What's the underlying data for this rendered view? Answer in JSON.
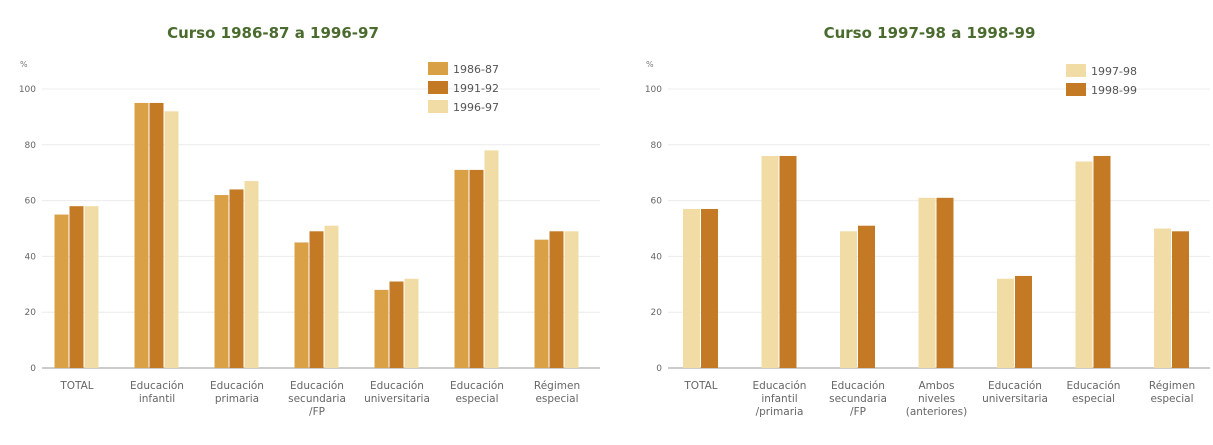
{
  "colors": {
    "dark": "#c47a24",
    "medium": "#d9a046",
    "light": "#f0dca4",
    "title": "#4a6b2e"
  },
  "chart_data": [
    {
      "type": "bar",
      "title": "Curso 1986-87 a 1996-97",
      "ylabel": "%",
      "ylim": [
        0,
        100
      ],
      "yticks": [
        0,
        20,
        40,
        60,
        80,
        100
      ],
      "grid": true,
      "legend": "top-right",
      "categories": [
        [
          "TOTAL"
        ],
        [
          "Educación",
          "infantil"
        ],
        [
          "Educación",
          "primaria"
        ],
        [
          "Educación",
          "secundaria",
          "/FP"
        ],
        [
          "Educación",
          "universitaria"
        ],
        [
          "Educación",
          "especial"
        ],
        [
          "Régimen",
          "especial"
        ]
      ],
      "series": [
        {
          "name": "1986-87",
          "color": "#d9a046",
          "values": [
            55,
            95,
            62,
            45,
            28,
            71,
            46
          ]
        },
        {
          "name": "1991-92",
          "color": "#c47a24",
          "values": [
            58,
            95,
            64,
            49,
            31,
            71,
            49
          ]
        },
        {
          "name": "1996-97",
          "color": "#f0dca4",
          "values": [
            58,
            92,
            67,
            51,
            32,
            78,
            49
          ]
        }
      ]
    },
    {
      "type": "bar",
      "title": "Curso 1997-98 a 1998-99",
      "ylabel": "%",
      "ylim": [
        0,
        100
      ],
      "yticks": [
        0,
        20,
        40,
        60,
        80,
        100
      ],
      "grid": true,
      "legend": "top-right",
      "categories": [
        [
          "TOTAL"
        ],
        [
          "Educación",
          "infantil",
          "/primaria"
        ],
        [
          "Educación",
          "secundaria",
          "/FP"
        ],
        [
          "Ambos",
          "niveles",
          "(anteriores)"
        ],
        [
          "Educación",
          "universitaria"
        ],
        [
          "Educación",
          "especial"
        ],
        [
          "Régimen",
          "especial"
        ]
      ],
      "series": [
        {
          "name": "1997-98",
          "color": "#f0dca4",
          "values": [
            57,
            76,
            49,
            61,
            32,
            74,
            50
          ]
        },
        {
          "name": "1998-99",
          "color": "#c47a24",
          "values": [
            57,
            76,
            51,
            61,
            33,
            76,
            49
          ]
        }
      ]
    }
  ]
}
